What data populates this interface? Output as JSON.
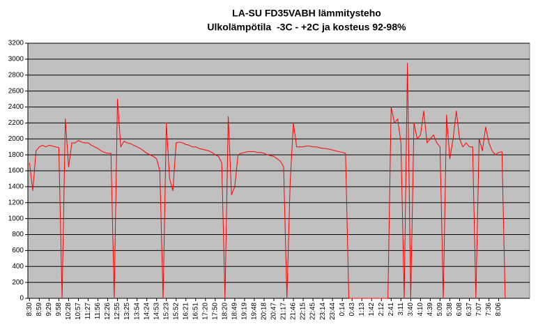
{
  "chart_data": {
    "type": "line",
    "title": "LA-SU FD35VABH lämmitysteho",
    "subtitle": "Ulkolämpötila  -3C - +2C ja kosteus 92-98%",
    "categories": [
      "8:30",
      null,
      null,
      "8:59",
      null,
      null,
      "9:29",
      null,
      null,
      "9:58",
      null,
      null,
      "10:28",
      null,
      null,
      "10:57",
      null,
      null,
      "11:27",
      null,
      null,
      "11:56",
      null,
      null,
      "12:26",
      null,
      null,
      "12:55",
      null,
      null,
      "13:25",
      null,
      null,
      "13:54",
      null,
      null,
      "14:24",
      null,
      null,
      "14:53",
      null,
      null,
      "15:23",
      null,
      null,
      "15:52",
      null,
      null,
      "16:21",
      null,
      null,
      "16:51",
      null,
      null,
      "17:20",
      null,
      null,
      "17:50",
      null,
      null,
      "18:20",
      null,
      null,
      "18:49",
      null,
      null,
      "19:19",
      null,
      null,
      "19:48",
      null,
      null,
      "20:18",
      null,
      null,
      "20:47",
      null,
      null,
      "21:17",
      null,
      null,
      "21:46",
      null,
      null,
      "22:15",
      null,
      null,
      "22:45",
      null,
      null,
      "23:14",
      null,
      null,
      "23:44",
      null,
      null,
      "0:14",
      null,
      null,
      "0:43",
      null,
      null,
      "1:13",
      null,
      null,
      "1:42",
      null,
      null,
      "2:12",
      null,
      null,
      "2:41",
      null,
      null,
      "3:11",
      null,
      null,
      "3:40",
      null,
      null,
      "4:10",
      null,
      null,
      "4:39",
      null,
      null,
      "5:09",
      null,
      null,
      "5:38",
      null,
      null,
      "6:08",
      null,
      null,
      "6:37",
      null,
      null,
      "7:07",
      null,
      null,
      "7:36",
      null,
      null,
      "8:06",
      null,
      null,
      null,
      null,
      null,
      null,
      null,
      null,
      null
    ],
    "series": [
      {
        "color": "#ff0000",
        "values": [
          1700,
          1350,
          1850,
          1900,
          1920,
          1900,
          1920,
          1910,
          1900,
          1890,
          0,
          2250,
          1650,
          1950,
          1950,
          1980,
          1960,
          1950,
          1950,
          1920,
          1900,
          1880,
          1850,
          1830,
          1820,
          1820,
          0,
          2500,
          1900,
          1970,
          1950,
          1940,
          1920,
          1900,
          1880,
          1850,
          1820,
          1800,
          1780,
          1750,
          1600,
          0,
          2200,
          1500,
          1350,
          1950,
          1960,
          1950,
          1930,
          1920,
          1900,
          1900,
          1880,
          1870,
          1860,
          1850,
          1830,
          1800,
          1780,
          1700,
          0,
          2280,
          1300,
          1400,
          1800,
          1820,
          1830,
          1840,
          1840,
          1840,
          1830,
          1830,
          1820,
          1800,
          1790,
          1780,
          1750,
          1720,
          1650,
          0,
          1450,
          2200,
          1900,
          1900,
          1900,
          1910,
          1910,
          1900,
          1900,
          1890,
          1880,
          1880,
          1870,
          1860,
          1850,
          1840,
          1830,
          1820,
          0,
          0,
          0,
          0,
          0,
          0,
          0,
          0,
          0,
          0,
          0,
          0,
          0,
          2400,
          2200,
          2250,
          1950,
          0,
          2950,
          0,
          2200,
          2000,
          2050,
          2350,
          1950,
          2000,
          2050,
          1950,
          1900,
          0,
          2300,
          1750,
          2000,
          2350,
          2000,
          1900,
          1950,
          1900,
          1900,
          0,
          2000,
          1850,
          2150,
          1950,
          1850,
          1800,
          1830,
          1840,
          0,
          null,
          null,
          null,
          null,
          null,
          null,
          null
        ]
      }
    ],
    "ylim": [
      0,
      3200
    ],
    "yticks": [
      0,
      200,
      400,
      600,
      800,
      1000,
      1200,
      1400,
      1600,
      1800,
      2000,
      2200,
      2400,
      2600,
      2800,
      3000,
      3200
    ],
    "grid": true,
    "plot_background": "#c0c0c0"
  }
}
